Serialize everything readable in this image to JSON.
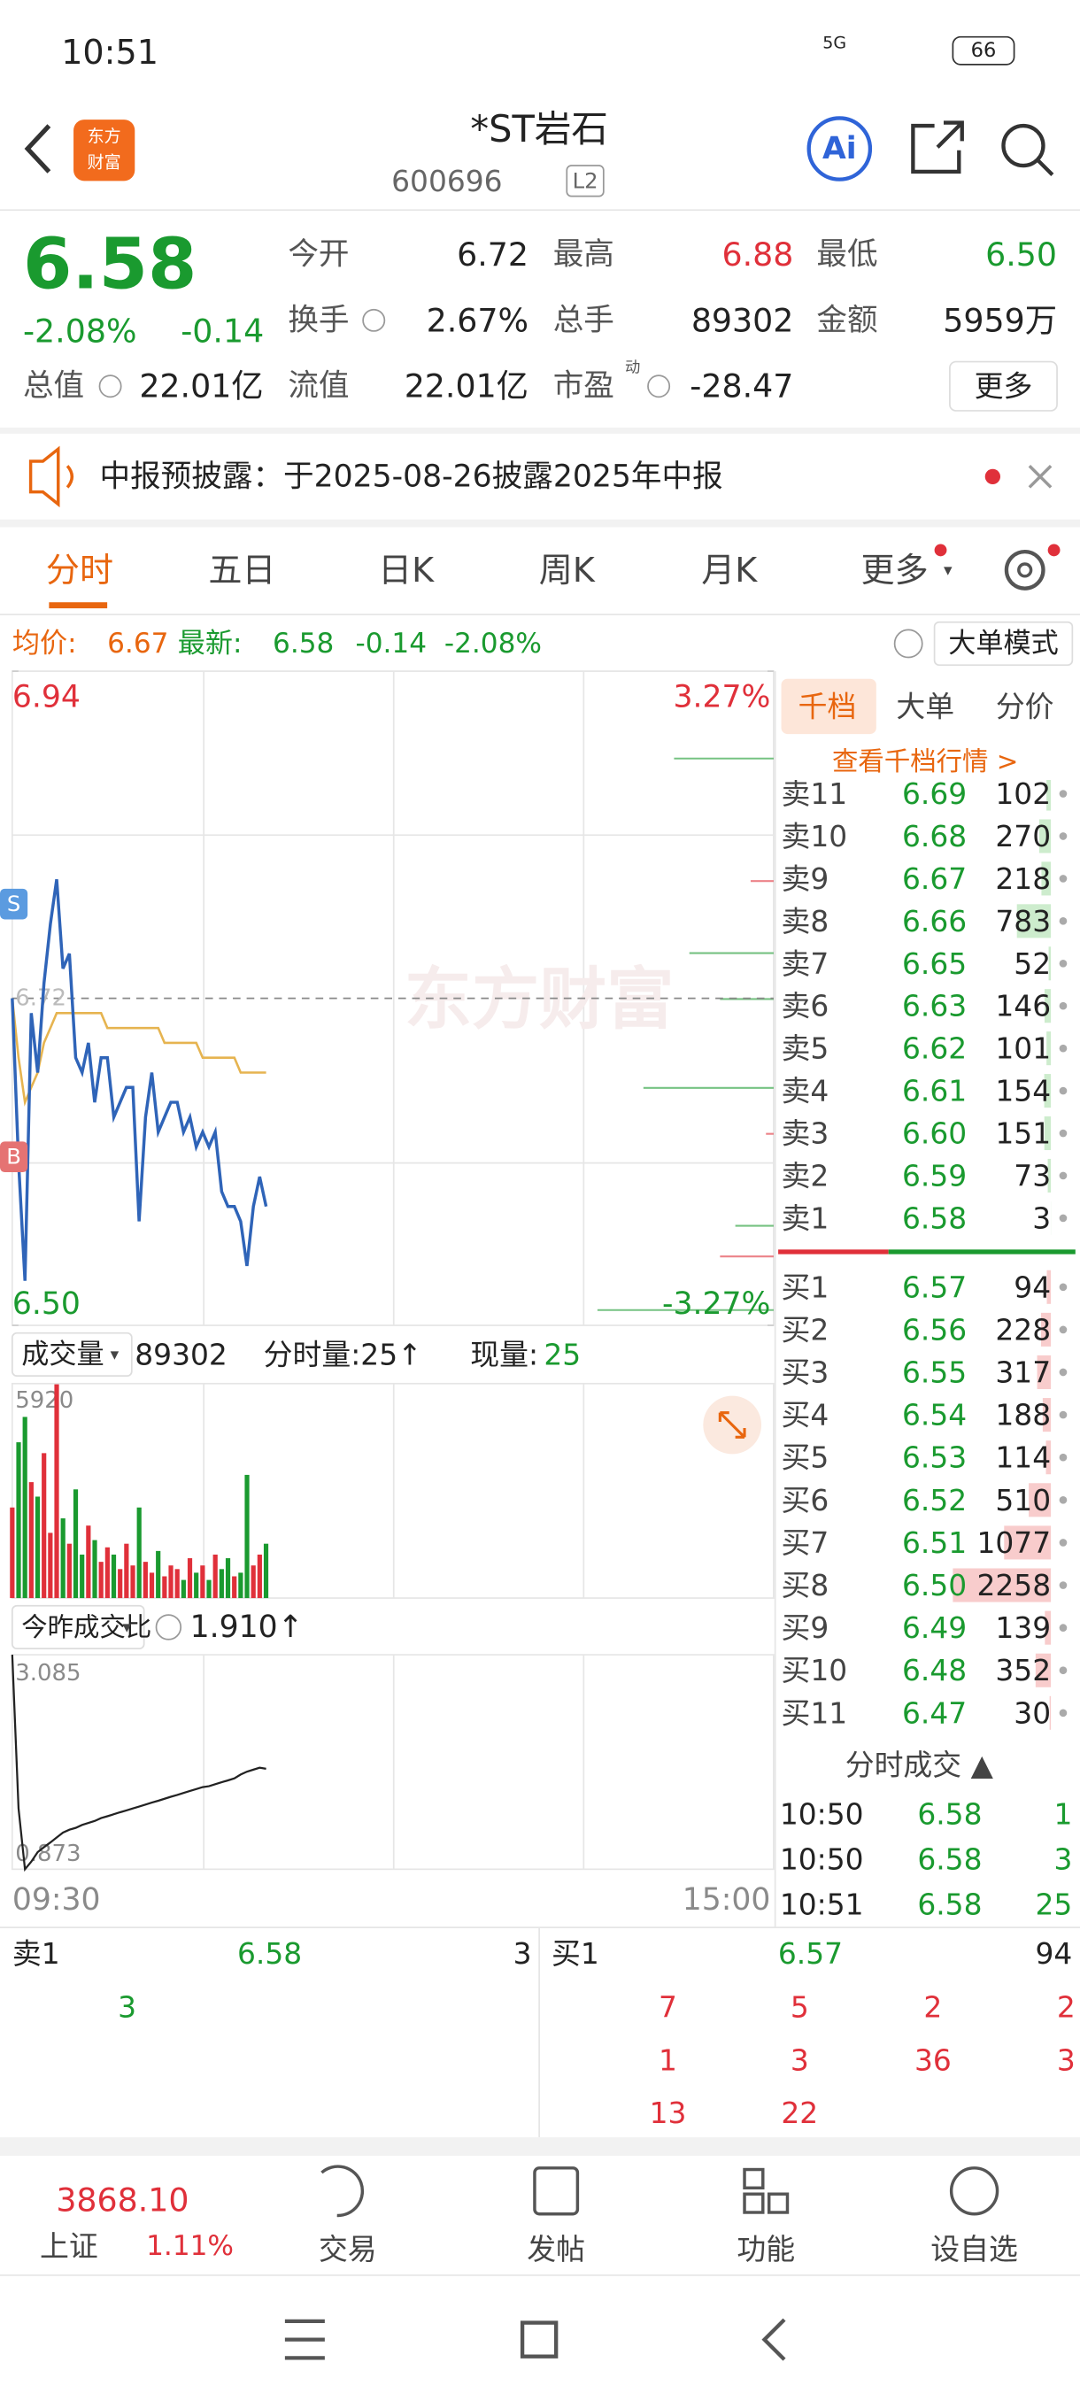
{
  "status": {
    "time": "10:51",
    "network": "5G",
    "battery": "66"
  },
  "header": {
    "logo": [
      "东方",
      "财富"
    ],
    "title": "*ST岩石",
    "code": "600696",
    "level": "L2",
    "ai": "Ai"
  },
  "quote": {
    "price": "6.58",
    "change_pct": "-2.08%",
    "change": "-0.14",
    "fields": [
      {
        "label": "今开",
        "value": "6.72"
      },
      {
        "label": "最高",
        "value": "6.88"
      },
      {
        "label": "最低",
        "value": "6.50"
      },
      {
        "label": "换手",
        "value": "2.67%"
      },
      {
        "label": "总手",
        "value": "89302"
      },
      {
        "label": "金额",
        "value": "5959万"
      },
      {
        "label": "总值",
        "value": "22.01亿"
      },
      {
        "label": "流值",
        "value": "22.01亿"
      },
      {
        "label": "市盈",
        "value": "-28.47"
      }
    ],
    "pe_note": "动",
    "more": "更多"
  },
  "notice": "中报预披露：于2025-08-26披露2025年中报",
  "tabs": [
    "分时",
    "五日",
    "日K",
    "周K",
    "月K",
    "更多"
  ],
  "info": {
    "avg_label": "均价:",
    "avg": "6.67",
    "latest_label": "最新:",
    "latest": "6.58",
    "change": "-0.14",
    "change_pct": "-2.08%",
    "mode": "大单模式"
  },
  "volume_header": {
    "label": "成交量",
    "total": "89302",
    "minute": "分时量:25↑",
    "current_label": "现量:",
    "current": "25"
  },
  "ratio_header": {
    "label": "今昨成交比",
    "value": "1.910↑"
  },
  "chart_data": [
    {
      "type": "line",
      "watermark": "东方财富",
      "ylim": [
        6.5,
        6.94
      ],
      "yticks": [
        {
          "value": 6.5,
          "label": "6.50"
        },
        6.94
      ],
      "y2lim": [
        -3.27,
        3.27
      ],
      "y2ticks": [
        {
          "value": -3.27,
          "label": "-3.27%"
        },
        {
          "value": 3.27,
          "label": "3.27%"
        }
      ],
      "reference_line": 6.72,
      "xticks": [
        "09:30",
        "15:00"
      ],
      "markers": [
        "S",
        "B"
      ],
      "series": [
        {
          "name": "price",
          "color": "#2f64b8",
          "values": [
            6.72,
            6.61,
            6.53,
            6.71,
            6.67,
            6.73,
            6.77,
            6.8,
            6.74,
            6.75,
            6.68,
            6.67,
            6.69,
            6.65,
            6.68,
            6.68,
            6.64,
            6.65,
            6.66,
            6.66,
            6.57,
            6.64,
            6.67,
            6.63,
            6.64,
            6.65,
            6.65,
            6.63,
            6.64,
            6.62,
            6.63,
            6.62,
            6.63,
            6.59,
            6.58,
            6.58,
            6.57,
            6.54,
            6.58,
            6.6,
            6.58
          ]
        },
        {
          "name": "avg",
          "color": "#e6b450",
          "values": [
            6.72,
            6.68,
            6.65,
            6.66,
            6.67,
            6.69,
            6.7,
            6.71,
            6.71,
            6.71,
            6.71,
            6.71,
            6.71,
            6.71,
            6.71,
            6.7,
            6.7,
            6.7,
            6.7,
            6.7,
            6.7,
            6.7,
            6.7,
            6.7,
            6.69,
            6.69,
            6.69,
            6.69,
            6.69,
            6.69,
            6.68,
            6.68,
            6.68,
            6.68,
            6.68,
            6.68,
            6.67,
            6.67,
            6.67,
            6.67,
            6.67
          ]
        }
      ]
    },
    {
      "type": "bar",
      "ylim": [
        0,
        5920
      ],
      "yticks": [
        5920
      ],
      "values": [
        2500,
        4300,
        5000,
        3200,
        2800,
        4000,
        1800,
        5900,
        2200,
        1500,
        3000,
        1200,
        2000,
        1600,
        1000,
        1400,
        1200,
        800,
        1500,
        900,
        2500,
        1000,
        700,
        1300,
        600,
        900,
        800,
        500,
        1100,
        700,
        900,
        500,
        1200,
        800,
        1100,
        600,
        700,
        3400,
        900,
        1200,
        1500
      ]
    },
    {
      "type": "line",
      "ylim": [
        0.873,
        3.085
      ],
      "yticks": [
        3.085,
        0.873
      ],
      "series": [
        {
          "name": "ratio",
          "color": "#222222",
          "values": [
            3.085,
            1.5,
            0.873,
            0.95,
            1.05,
            1.1,
            1.15,
            1.2,
            1.25,
            1.28,
            1.3,
            1.33,
            1.35,
            1.37,
            1.4,
            1.42,
            1.44,
            1.46,
            1.48,
            1.5,
            1.52,
            1.54,
            1.56,
            1.58,
            1.6,
            1.62,
            1.64,
            1.66,
            1.68,
            1.7,
            1.72,
            1.73,
            1.75,
            1.77,
            1.79,
            1.81,
            1.85,
            1.88,
            1.9,
            1.92,
            1.91
          ]
        }
      ]
    }
  ],
  "orderbook": {
    "tabs": [
      "千档",
      "大单",
      "分价"
    ],
    "link": "查看千档行情 >",
    "asks": [
      [
        "卖11",
        "6.69",
        102
      ],
      [
        "卖10",
        "6.68",
        270
      ],
      [
        "卖9",
        "6.67",
        218
      ],
      [
        "卖8",
        "6.66",
        783
      ],
      [
        "卖7",
        "6.65",
        52
      ],
      [
        "卖6",
        "6.63",
        146
      ],
      [
        "卖5",
        "6.62",
        101
      ],
      [
        "卖4",
        "6.61",
        154
      ],
      [
        "卖3",
        "6.60",
        151
      ],
      [
        "卖2",
        "6.59",
        73
      ],
      [
        "卖1",
        "6.58",
        3
      ]
    ],
    "bids": [
      [
        "买1",
        "6.57",
        94
      ],
      [
        "买2",
        "6.56",
        228
      ],
      [
        "买3",
        "6.55",
        317
      ],
      [
        "买4",
        "6.54",
        188
      ],
      [
        "买5",
        "6.53",
        114
      ],
      [
        "买6",
        "6.52",
        510
      ],
      [
        "买7",
        "6.51",
        1077
      ],
      [
        "买8",
        "6.50",
        2258
      ],
      [
        "买9",
        "6.49",
        139
      ],
      [
        "买10",
        "6.48",
        352
      ],
      [
        "买11",
        "6.47",
        30
      ]
    ]
  },
  "trades": {
    "title": "分时成交 ▲",
    "rows": [
      [
        "10:50",
        "6.58",
        "1"
      ],
      [
        "10:50",
        "6.58",
        "3"
      ],
      [
        "10:51",
        "6.58",
        "25"
      ]
    ]
  },
  "summary": {
    "ask_label": "卖1",
    "ask_price": "6.58",
    "ask_vol": "3",
    "ask_orders": [
      "3"
    ],
    "bid_label": "买1",
    "bid_price": "6.57",
    "bid_vol": "94",
    "bid_orders": [
      "7",
      "5",
      "2",
      "2",
      "1",
      "3",
      "36",
      "3",
      "13",
      "22"
    ]
  },
  "bottom": {
    "index_value": "3868.10",
    "index_name": "上证",
    "index_change": "1.11%",
    "items": [
      "交易",
      "发帖",
      "功能",
      "设自选"
    ]
  }
}
